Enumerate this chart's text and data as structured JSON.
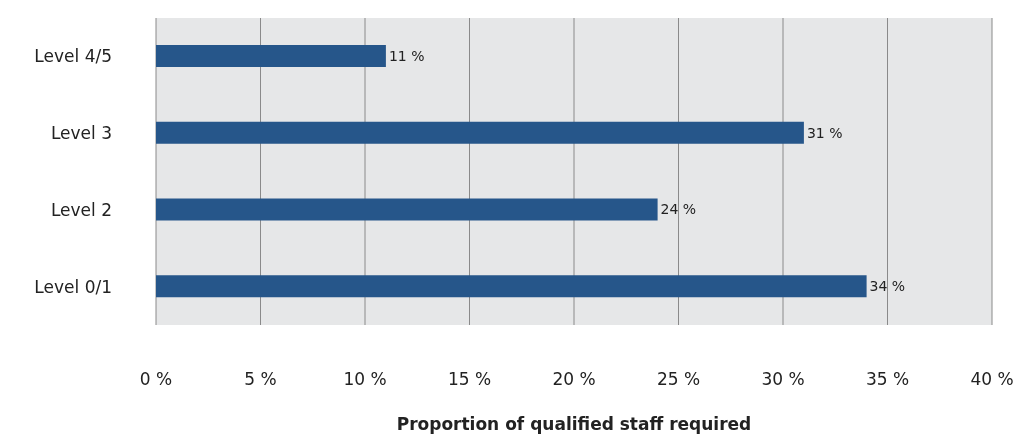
{
  "chart_data": {
    "type": "bar",
    "orientation": "horizontal",
    "xlabel": "Proportion of qualified staff required",
    "categories": [
      "Level 4/5",
      "Level 3",
      "Level 2",
      "Level 0/1"
    ],
    "values": [
      11,
      31,
      24,
      34
    ],
    "value_labels": [
      "11 %",
      "31 %",
      "24 %",
      "34 %"
    ],
    "color": "#26568a",
    "xlim": [
      0,
      40
    ],
    "xticks": [
      {
        "value": 0,
        "label": "0 %"
      },
      {
        "value": 5,
        "label": "5 %"
      },
      {
        "value": 10,
        "label": "10 %"
      },
      {
        "value": 15,
        "label": "15 %"
      },
      {
        "value": 20,
        "label": "20 %"
      },
      {
        "value": 25,
        "label": "25 %"
      },
      {
        "value": 30,
        "label": "30 %"
      },
      {
        "value": 35,
        "label": "35 %"
      },
      {
        "value": 40,
        "label": "40 %"
      }
    ],
    "grid": "x",
    "legend": false
  }
}
